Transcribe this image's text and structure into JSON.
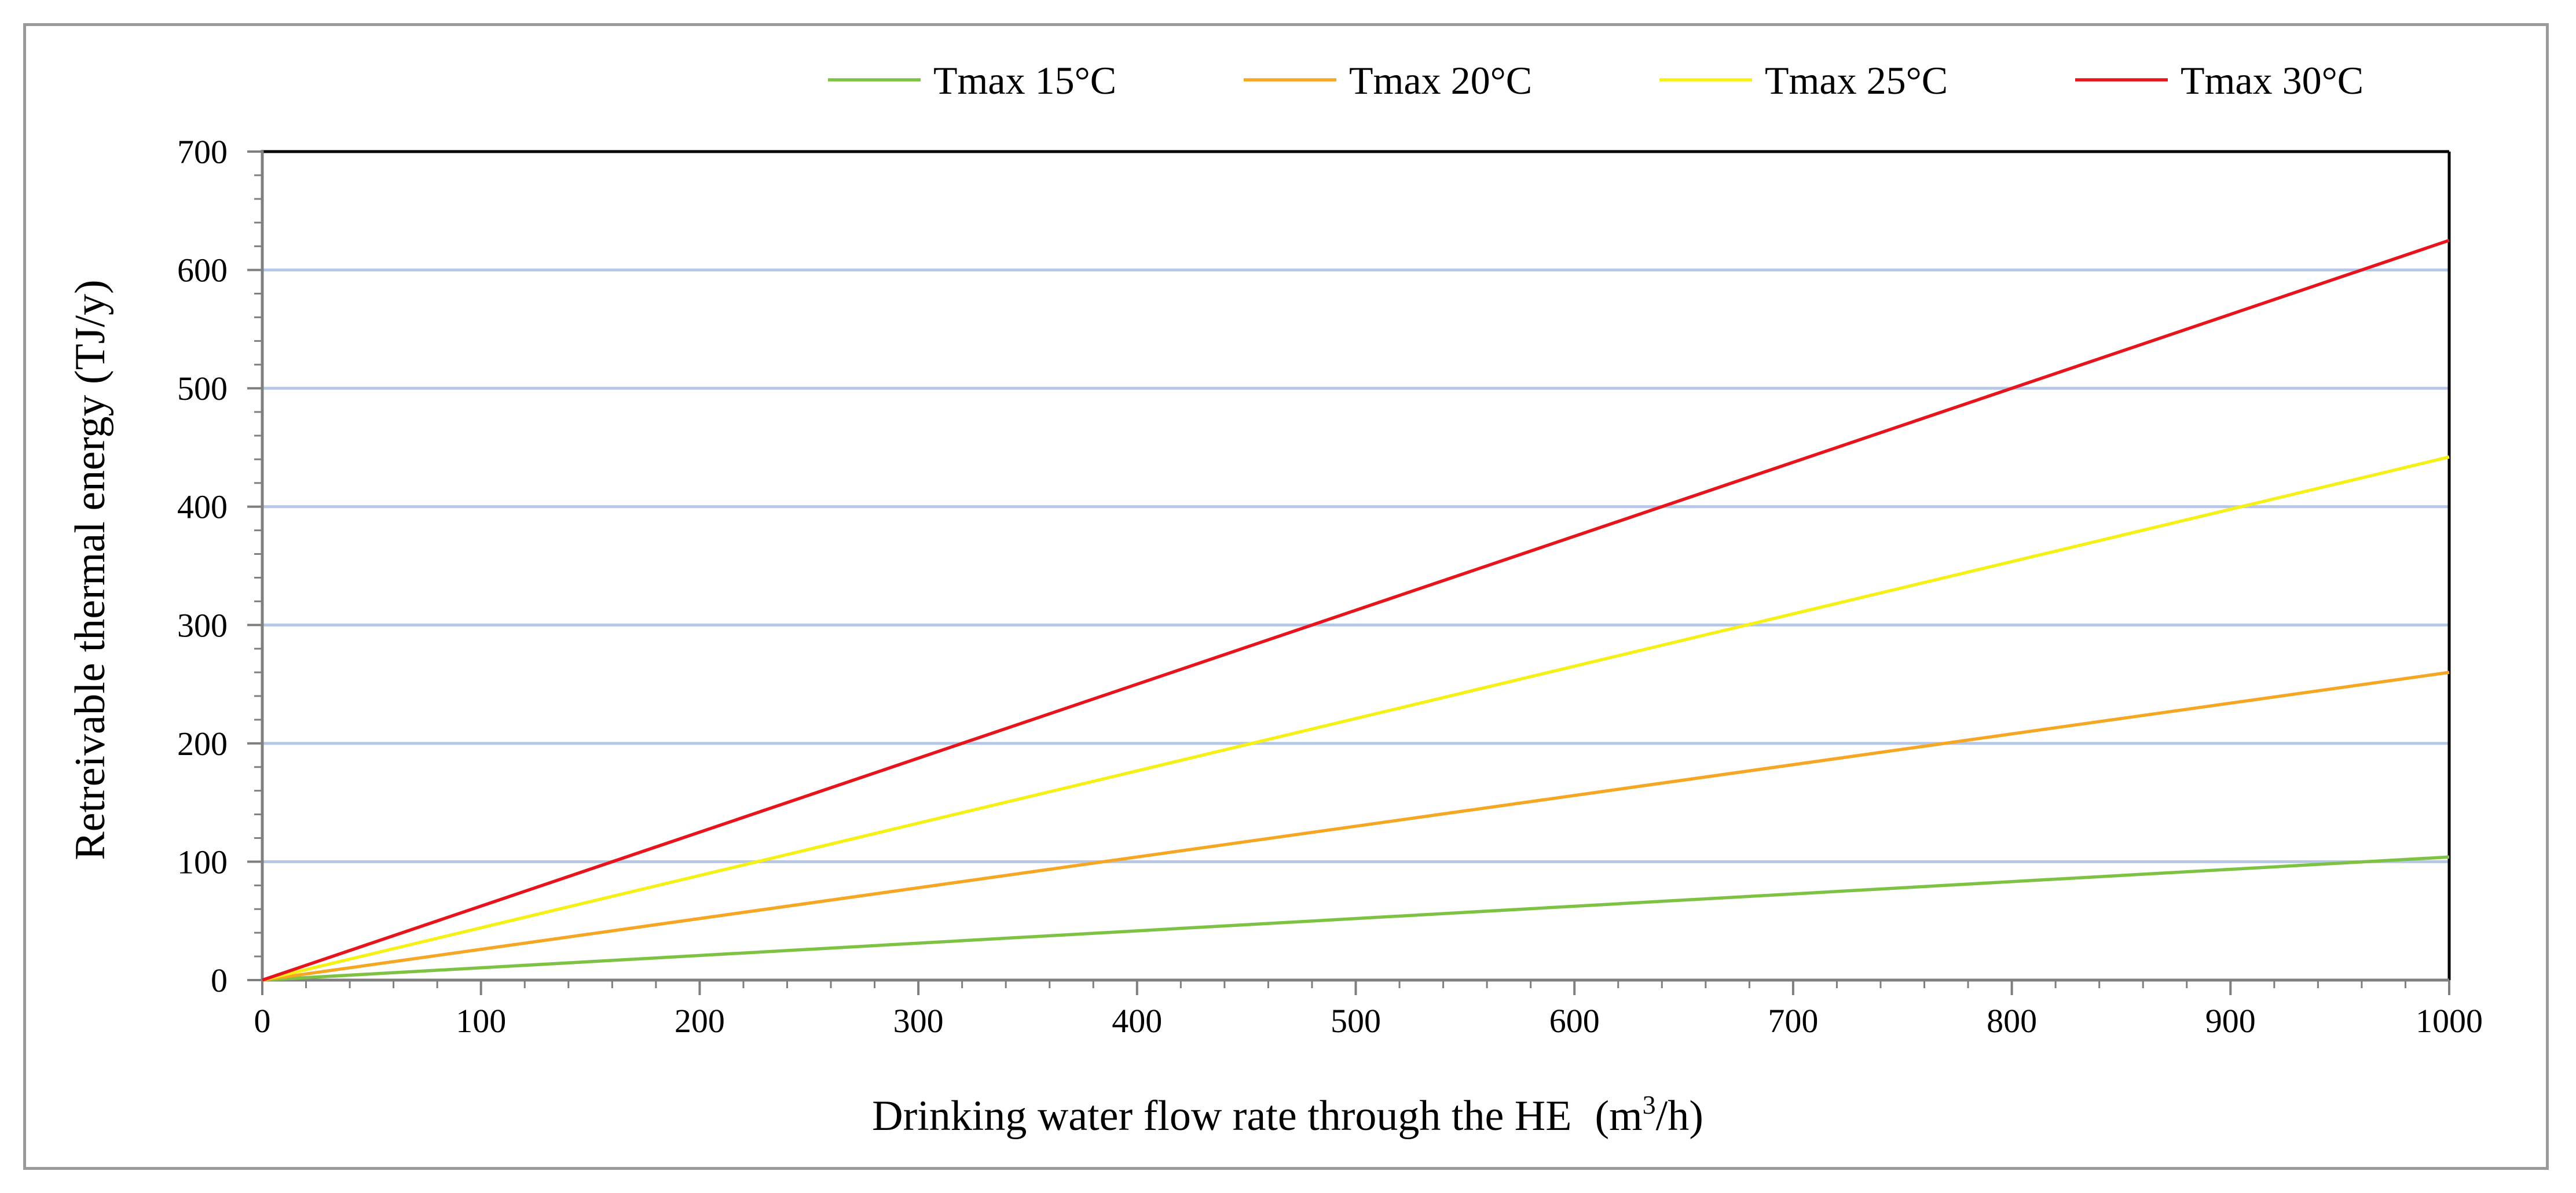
{
  "chart_data": {
    "type": "line",
    "title": "",
    "xlabel": "Drinking water flow rate through the HE",
    "xlabel_unit_prefix": "(m",
    "xlabel_unit_sup": "3",
    "xlabel_unit_suffix": "/h)",
    "ylabel": "Retreivable thermal energy (TJ/y)",
    "xlim": [
      0,
      1000
    ],
    "ylim": [
      0,
      700
    ],
    "x_ticks": [
      "0",
      "100",
      "200",
      "300",
      "400",
      "500",
      "600",
      "700",
      "800",
      "900",
      "1000"
    ],
    "y_ticks": [
      "0",
      "100",
      "200",
      "300",
      "400",
      "500",
      "600",
      "700"
    ],
    "gridlines": "horizontal",
    "legend_position": "top",
    "series": [
      {
        "name": "Tmax 15°C",
        "color": "#7dc242",
        "x": [
          0,
          1000
        ],
        "values": [
          0,
          104
        ]
      },
      {
        "name": "Tmax 20°C",
        "color": "#f5a623",
        "x": [
          0,
          1000
        ],
        "values": [
          0,
          260
        ]
      },
      {
        "name": "Tmax 25°C",
        "color": "#f5f015",
        "x": [
          0,
          1000
        ],
        "values": [
          0,
          442
        ]
      },
      {
        "name": "Tmax 30°C",
        "color": "#e8141c",
        "x": [
          0,
          1000
        ],
        "values": [
          0,
          625
        ]
      }
    ]
  }
}
